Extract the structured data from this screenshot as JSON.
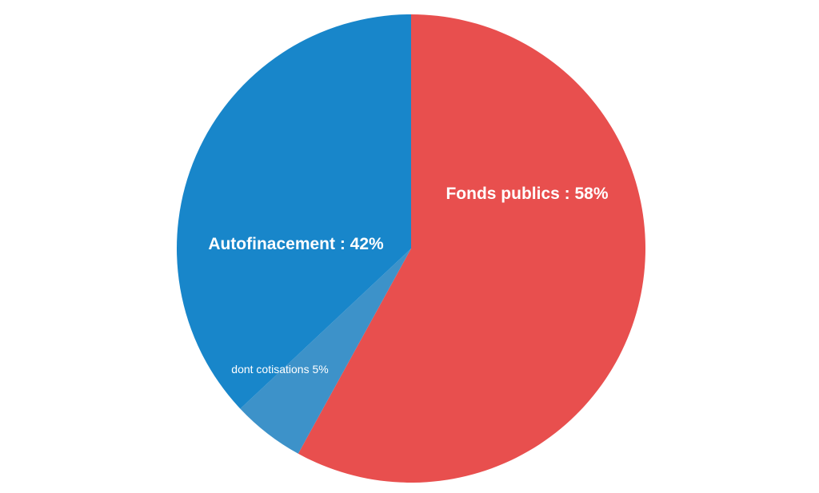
{
  "chart_data": {
    "type": "pie",
    "start_angle_deg": 0,
    "direction": "clockwise",
    "slices": [
      {
        "label": "Fonds publics : 58%",
        "value": 58,
        "color": "#e84f4e"
      },
      {
        "label": "dont cotisations 5%",
        "value": 5,
        "color": "#3d92c9"
      },
      {
        "label": "Autofinacement : 42%",
        "value": 37,
        "color": "#1886ca"
      }
    ],
    "grouped_total": {
      "label": "Autofinacement : 42%",
      "value": 42
    }
  }
}
